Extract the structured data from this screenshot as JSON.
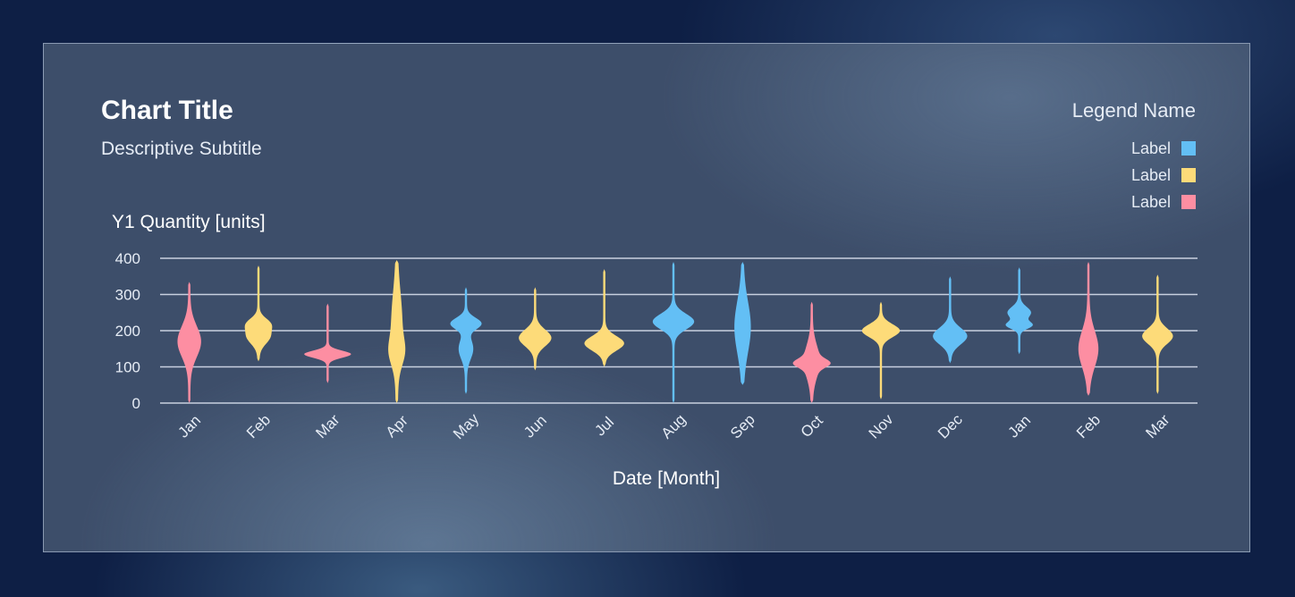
{
  "card": {
    "title": "Chart Title",
    "subtitle": "Descriptive Subtitle"
  },
  "legend": {
    "title": "Legend Name",
    "items": [
      {
        "label": "Label",
        "color": "#63bff5"
      },
      {
        "label": "Label",
        "color": "#fddb79"
      },
      {
        "label": "Label",
        "color": "#fd8ea2"
      }
    ]
  },
  "chart_data": {
    "type": "violin",
    "ylabel": "Y1 Quantity [units]",
    "xlabel": "Date [Month]",
    "ylim": [
      0,
      400
    ],
    "yticks": [
      0,
      100,
      200,
      300,
      400
    ],
    "grid": true,
    "legend_position": "top-right",
    "colors": {
      "blue": "#63bff5",
      "yellow": "#fddb79",
      "pink": "#fd8ea2"
    },
    "violins": [
      {
        "category": "Jan",
        "color": "pink",
        "min": 0,
        "max": 335,
        "modes": [
          [
            170,
            12,
            60
          ]
        ]
      },
      {
        "category": "Feb",
        "color": "yellow",
        "min": 115,
        "max": 380,
        "modes": [
          [
            220,
            10,
            22
          ],
          [
            185,
            12,
            30
          ]
        ]
      },
      {
        "category": "Mar",
        "color": "pink",
        "min": 55,
        "max": 275,
        "modes": [
          [
            135,
            25,
            14
          ]
        ]
      },
      {
        "category": "Apr",
        "color": "yellow",
        "min": 0,
        "max": 395,
        "modes": [
          [
            220,
            5,
            120
          ],
          [
            140,
            5,
            50
          ]
        ]
      },
      {
        "category": "May",
        "color": "blue",
        "min": 25,
        "max": 320,
        "modes": [
          [
            220,
            16,
            22
          ],
          [
            150,
            7,
            40
          ]
        ]
      },
      {
        "category": "Jun",
        "color": "yellow",
        "min": 90,
        "max": 320,
        "modes": [
          [
            180,
            17,
            32
          ]
        ]
      },
      {
        "category": "Jul",
        "color": "yellow",
        "min": 100,
        "max": 370,
        "modes": [
          [
            165,
            21,
            28
          ]
        ]
      },
      {
        "category": "Aug",
        "color": "blue",
        "min": 0,
        "max": 390,
        "modes": [
          [
            225,
            22,
            30
          ]
        ]
      },
      {
        "category": "Sep",
        "color": "blue",
        "min": 50,
        "max": 390,
        "modes": [
          [
            210,
            8,
            100
          ]
        ]
      },
      {
        "category": "Oct",
        "color": "pink",
        "min": 0,
        "max": 280,
        "modes": [
          [
            110,
            12,
            16
          ],
          [
            115,
            8,
            60
          ]
        ]
      },
      {
        "category": "Nov",
        "color": "yellow",
        "min": 10,
        "max": 280,
        "modes": [
          [
            200,
            20,
            25
          ]
        ]
      },
      {
        "category": "Dec",
        "color": "blue",
        "min": 110,
        "max": 350,
        "modes": [
          [
            185,
            18,
            32
          ]
        ]
      },
      {
        "category": "Jan",
        "color": "blue",
        "min": 135,
        "max": 375,
        "modes": [
          [
            250,
            12,
            22
          ],
          [
            215,
            13,
            14
          ]
        ]
      },
      {
        "category": "Feb",
        "color": "pink",
        "min": 20,
        "max": 390,
        "modes": [
          [
            150,
            10,
            70
          ]
        ]
      },
      {
        "category": "Mar",
        "color": "yellow",
        "min": 25,
        "max": 355,
        "modes": [
          [
            185,
            16,
            30
          ]
        ]
      }
    ]
  }
}
